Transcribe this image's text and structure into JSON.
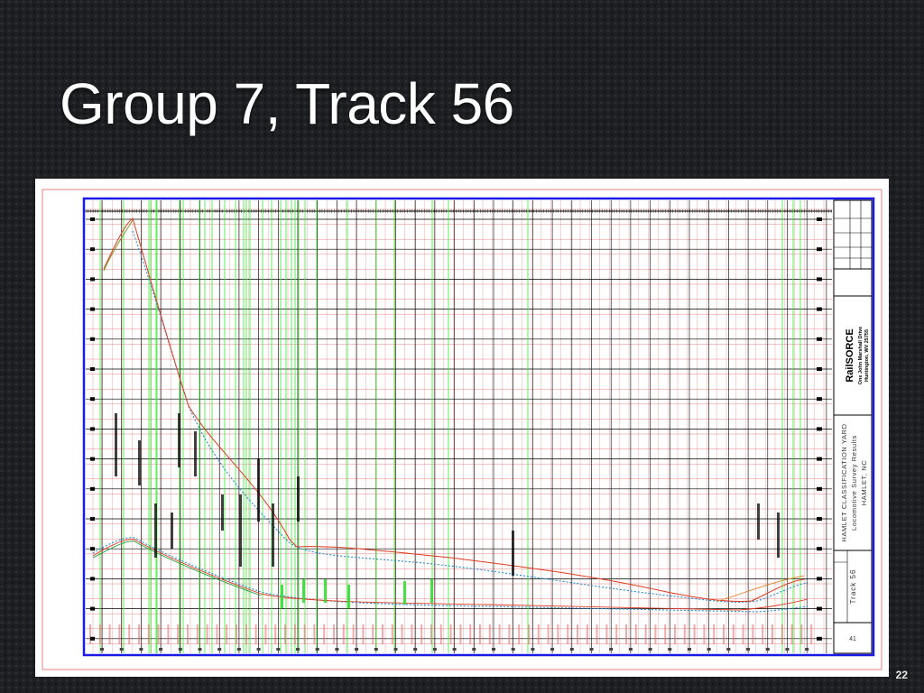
{
  "slide": {
    "title": "Group 7, Track 56",
    "page_number": "22"
  },
  "title_block": {
    "company": "RailSORCE",
    "address_line1": "One John Marshall Drive",
    "address_line2": "Huntington, WV 25755",
    "project_line1": "HAMLET CLASSIFICATION YARD",
    "project_line2": "Locomotive Survey Results",
    "project_line3": "HAMLET, NC",
    "track_label": "Track 56",
    "sheet_number": "41"
  },
  "colors": {
    "sheet_border": "#1a1ae6",
    "grid_major": "#000000",
    "grid_minor": "#e06666",
    "station_lines": "#33ee33",
    "profile_existing": "#1e8fd8",
    "profile_proposed": "#e03a20",
    "profile_alt": "#7a9a20",
    "labels": "#33dd33"
  }
}
